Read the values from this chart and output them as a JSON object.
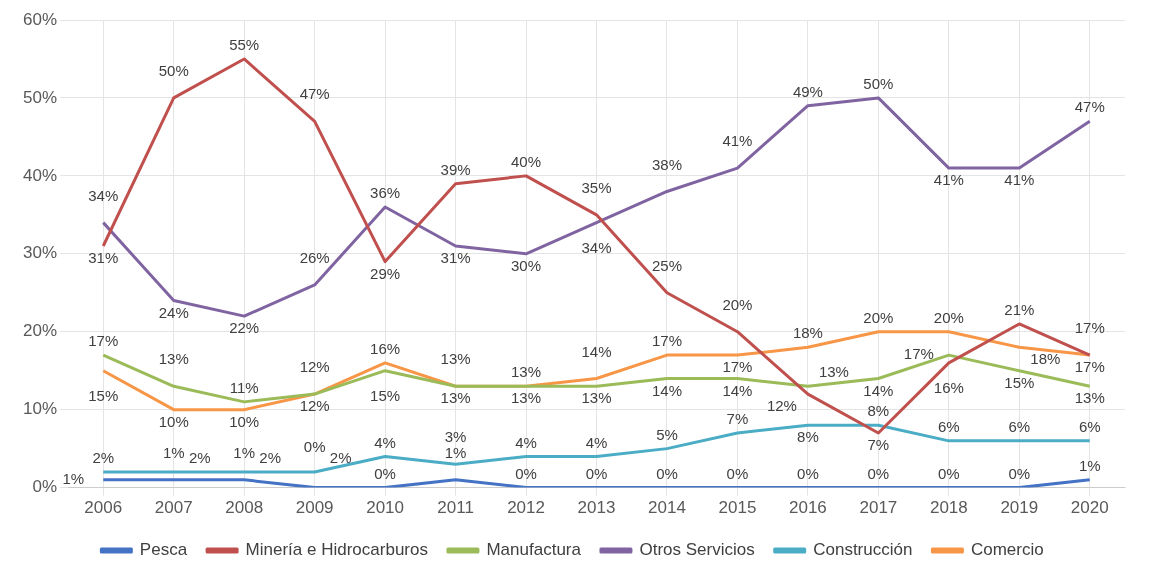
{
  "chart_data": {
    "type": "line",
    "categories": [
      "2006",
      "2007",
      "2008",
      "2009",
      "2010",
      "2011",
      "2012",
      "2013",
      "2014",
      "2015",
      "2016",
      "2017",
      "2018",
      "2019",
      "2020"
    ],
    "series": [
      {
        "name": "Pesca",
        "color": "#4472c4",
        "values": [
          1,
          1,
          1,
          0,
          0,
          1,
          0,
          0,
          0,
          0,
          0,
          0,
          0,
          0,
          1
        ],
        "value_labels": [
          "1%",
          "1%",
          "1%",
          "0%",
          "0%",
          "1%",
          "0%",
          "0%",
          "0%",
          "0%",
          "0%",
          "0%",
          "0%",
          "0%",
          "1%"
        ]
      },
      {
        "name": "Minería e Hidrocarburos",
        "color": "#c0504d",
        "values": [
          31,
          50,
          55,
          47,
          29,
          39,
          40,
          35,
          25,
          20,
          12,
          7,
          16,
          21,
          17
        ],
        "value_labels": [
          "31%",
          "50%",
          "55%",
          "47%",
          "29%",
          "39%",
          "40%",
          "35%",
          "25%",
          "20%",
          "12%",
          "7%",
          "16%",
          "21%",
          "17%"
        ]
      },
      {
        "name": "Manufactura",
        "color": "#9bbb59",
        "values": [
          17,
          13,
          11,
          12,
          15,
          13,
          13,
          13,
          14,
          14,
          13,
          14,
          17,
          15,
          13
        ],
        "value_labels": [
          "17%",
          "13%",
          "11%",
          "12%",
          "15%",
          "13%",
          "13%",
          "13%",
          "14%",
          "14%",
          "13%",
          "14%",
          "17%",
          "15%",
          "13%"
        ]
      },
      {
        "name": "Otros Servicios",
        "color": "#8064a2",
        "values": [
          34,
          24,
          22,
          26,
          36,
          31,
          30,
          34,
          38,
          41,
          49,
          50,
          41,
          41,
          47
        ],
        "value_labels": [
          "34%",
          "24%",
          "22%",
          "26%",
          "36%",
          "31%",
          "30%",
          "34%",
          "38%",
          "41%",
          "49%",
          "50%",
          "41%",
          "41%",
          "47%"
        ]
      },
      {
        "name": "Construcción",
        "color": "#4bacc6",
        "values": [
          2,
          2,
          2,
          2,
          4,
          3,
          4,
          4,
          5,
          7,
          8,
          8,
          6,
          6,
          6
        ],
        "value_labels": [
          "2%",
          "2%",
          "2%",
          "2%",
          "4%",
          "3%",
          "4%",
          "4%",
          "5%",
          "7%",
          "8%",
          "8%",
          "6%",
          "6%",
          "6%"
        ]
      },
      {
        "name": "Comercio",
        "color": "#f79646",
        "values": [
          15,
          10,
          10,
          12,
          16,
          13,
          13,
          14,
          17,
          17,
          18,
          20,
          20,
          18,
          17
        ],
        "value_labels": [
          "15%",
          "10%",
          "10%",
          "12%",
          "16%",
          "13%",
          "13%",
          "14%",
          "17%",
          "17%",
          "18%",
          "20%",
          "20%",
          "18%",
          "17%"
        ]
      }
    ],
    "ylim": [
      0,
      60
    ],
    "yticks": [
      {
        "value": 0,
        "label": "0%"
      },
      {
        "value": 10,
        "label": "10%"
      },
      {
        "value": 20,
        "label": "20%"
      },
      {
        "value": 30,
        "label": "30%"
      },
      {
        "value": 40,
        "label": "40%"
      },
      {
        "value": 50,
        "label": "50%"
      },
      {
        "value": 60,
        "label": "60%"
      }
    ],
    "grid": true,
    "legend": "bottom",
    "marker": "none",
    "line_style": "solid"
  }
}
